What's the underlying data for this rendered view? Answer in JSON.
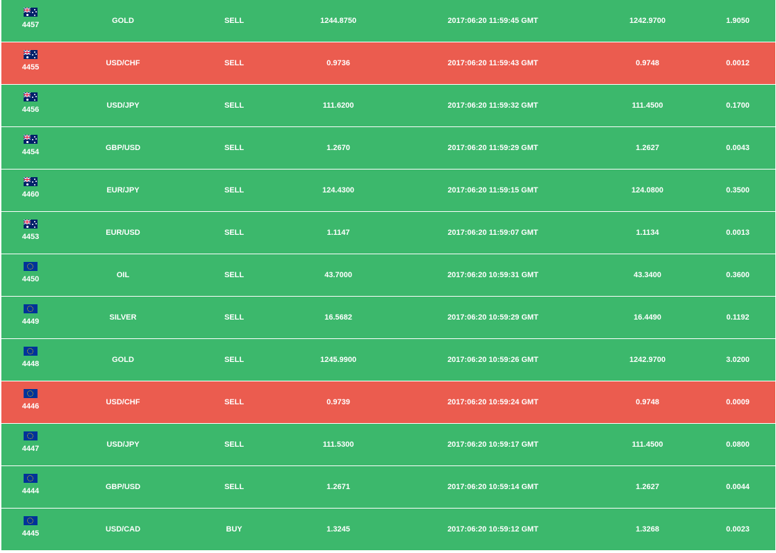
{
  "colors": {
    "win": "#3cb86c",
    "loss": "#eb5c4f",
    "text": "#ffffff"
  },
  "trades": [
    {
      "id": "4457",
      "flag": "au-flag-icon",
      "symbol": "GOLD",
      "side": "SELL",
      "open": "1244.8750",
      "time": "2017:06:20 11:59:45 GMT",
      "close": "1242.9700",
      "diff": "1.9050",
      "result": "win"
    },
    {
      "id": "4455",
      "flag": "au-flag-icon",
      "symbol": "USD/CHF",
      "side": "SELL",
      "open": "0.9736",
      "time": "2017:06:20 11:59:43 GMT",
      "close": "0.9748",
      "diff": "0.0012",
      "result": "loss"
    },
    {
      "id": "4456",
      "flag": "au-flag-icon",
      "symbol": "USD/JPY",
      "side": "SELL",
      "open": "111.6200",
      "time": "2017:06:20 11:59:32 GMT",
      "close": "111.4500",
      "diff": "0.1700",
      "result": "win"
    },
    {
      "id": "4454",
      "flag": "au-flag-icon",
      "symbol": "GBP/USD",
      "side": "SELL",
      "open": "1.2670",
      "time": "2017:06:20 11:59:29 GMT",
      "close": "1.2627",
      "diff": "0.0043",
      "result": "win"
    },
    {
      "id": "4460",
      "flag": "au-flag-icon",
      "symbol": "EUR/JPY",
      "side": "SELL",
      "open": "124.4300",
      "time": "2017:06:20 11:59:15 GMT",
      "close": "124.0800",
      "diff": "0.3500",
      "result": "win"
    },
    {
      "id": "4453",
      "flag": "au-flag-icon",
      "symbol": "EUR/USD",
      "side": "SELL",
      "open": "1.1147",
      "time": "2017:06:20 11:59:07 GMT",
      "close": "1.1134",
      "diff": "0.0013",
      "result": "win"
    },
    {
      "id": "4450",
      "flag": "eu-flag-icon",
      "symbol": "OIL",
      "side": "SELL",
      "open": "43.7000",
      "time": "2017:06:20 10:59:31 GMT",
      "close": "43.3400",
      "diff": "0.3600",
      "result": "win"
    },
    {
      "id": "4449",
      "flag": "eu-flag-icon",
      "symbol": "SILVER",
      "side": "SELL",
      "open": "16.5682",
      "time": "2017:06:20 10:59:29 GMT",
      "close": "16.4490",
      "diff": "0.1192",
      "result": "win"
    },
    {
      "id": "4448",
      "flag": "eu-flag-icon",
      "symbol": "GOLD",
      "side": "SELL",
      "open": "1245.9900",
      "time": "2017:06:20 10:59:26 GMT",
      "close": "1242.9700",
      "diff": "3.0200",
      "result": "win"
    },
    {
      "id": "4446",
      "flag": "eu-flag-icon",
      "symbol": "USD/CHF",
      "side": "SELL",
      "open": "0.9739",
      "time": "2017:06:20 10:59:24 GMT",
      "close": "0.9748",
      "diff": "0.0009",
      "result": "loss"
    },
    {
      "id": "4447",
      "flag": "eu-flag-icon",
      "symbol": "USD/JPY",
      "side": "SELL",
      "open": "111.5300",
      "time": "2017:06:20 10:59:17 GMT",
      "close": "111.4500",
      "diff": "0.0800",
      "result": "win"
    },
    {
      "id": "4444",
      "flag": "eu-flag-icon",
      "symbol": "GBP/USD",
      "side": "SELL",
      "open": "1.2671",
      "time": "2017:06:20 10:59:14 GMT",
      "close": "1.2627",
      "diff": "0.0044",
      "result": "win"
    },
    {
      "id": "4445",
      "flag": "eu-flag-icon",
      "symbol": "USD/CAD",
      "side": "BUY",
      "open": "1.3245",
      "time": "2017:06:20 10:59:12 GMT",
      "close": "1.3268",
      "diff": "0.0023",
      "result": "win"
    }
  ]
}
